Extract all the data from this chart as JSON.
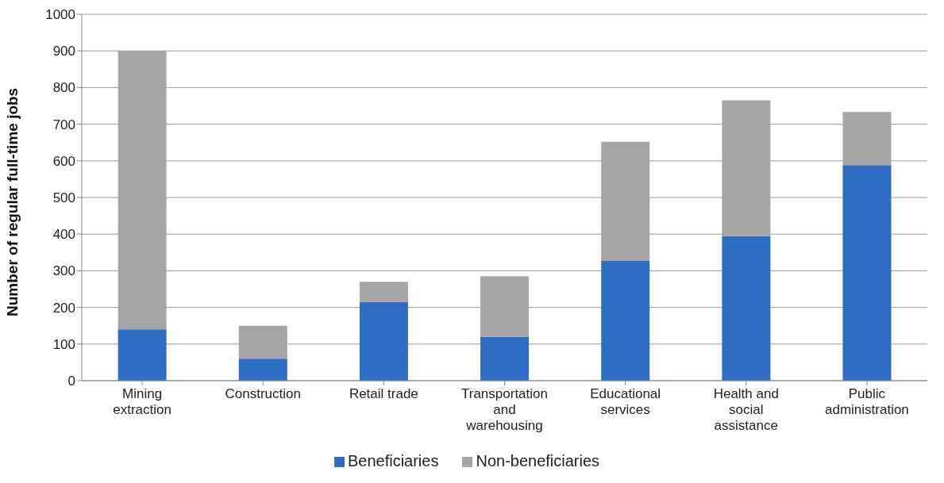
{
  "chart_data": {
    "type": "bar",
    "stacked": true,
    "ylabel": "Number of regular full-time jobs",
    "categories": [
      "Mining extraction",
      "Construction",
      "Retail trade",
      "Transportation and warehousing",
      "Educational services",
      "Health and social assistance",
      "Public administration"
    ],
    "series": [
      {
        "name": "Beneficiaries",
        "color": "#2e6dc4",
        "values": [
          140,
          60,
          215,
          120,
          327,
          395,
          588
        ]
      },
      {
        "name": "Non-beneficiaries",
        "color": "#a6a6a6",
        "values": [
          760,
          90,
          55,
          165,
          325,
          370,
          145
        ]
      }
    ],
    "ylim": [
      0,
      1000
    ],
    "yticks": [
      0,
      100,
      200,
      300,
      400,
      500,
      600,
      700,
      800,
      900,
      1000
    ],
    "grid": "y",
    "legend": "bottom"
  }
}
